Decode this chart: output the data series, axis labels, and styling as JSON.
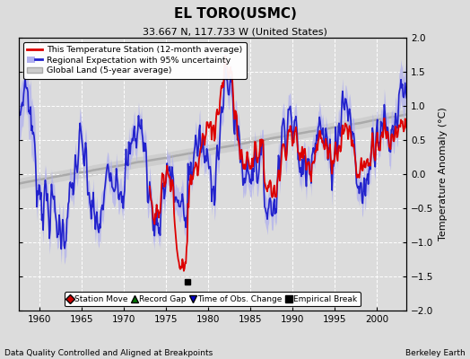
{
  "title": "EL TORO(USMC)",
  "subtitle": "33.667 N, 117.733 W (United States)",
  "xlabel_bottom": "Data Quality Controlled and Aligned at Breakpoints",
  "xlabel_right": "Berkeley Earth",
  "ylabel": "Temperature Anomaly (°C)",
  "xlim": [
    1957.5,
    2003.5
  ],
  "ylim": [
    -2,
    2
  ],
  "yticks": [
    -2,
    -1.5,
    -1,
    -0.5,
    0,
    0.5,
    1,
    1.5,
    2
  ],
  "xticks": [
    1960,
    1965,
    1970,
    1975,
    1980,
    1985,
    1990,
    1995,
    2000
  ],
  "background_color": "#dcdcdc",
  "grid_color": "#ffffff",
  "station_color": "#dd0000",
  "regional_color": "#2222cc",
  "regional_fill": "#b0b0ee",
  "global_color": "#aaaaaa",
  "global_fill": "#cccccc",
  "empirical_break_year": 1977.5,
  "empirical_break_value": -1.58,
  "legend_station": "This Temperature Station (12-month average)",
  "legend_regional": "Regional Expectation with 95% uncertainty",
  "legend_global": "Global Land (5-year average)",
  "marker_labels": [
    "Station Move",
    "Record Gap",
    "Time of Obs. Change",
    "Empirical Break"
  ],
  "marker_colors": [
    "#cc0000",
    "#007700",
    "#0000cc",
    "#000000"
  ],
  "marker_shapes": [
    "D",
    "^",
    "v",
    "s"
  ]
}
